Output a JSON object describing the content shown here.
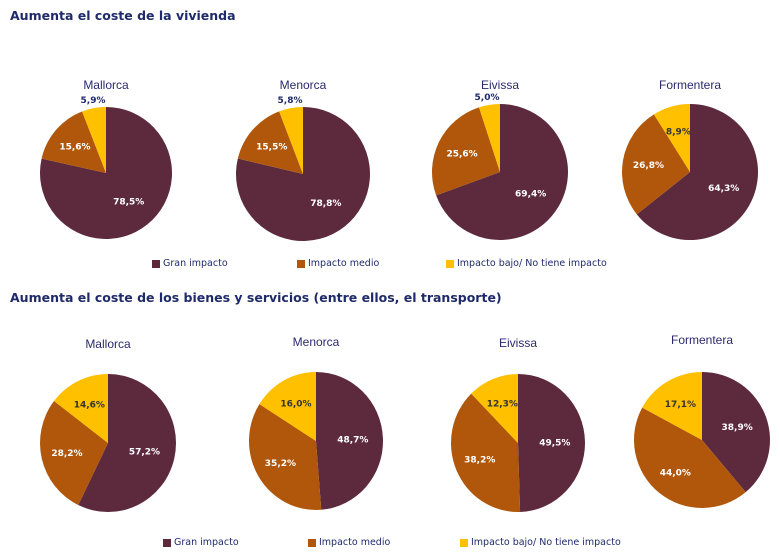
{
  "colors": {
    "gran": "#5c2a3c",
    "medio": "#b0570b",
    "bajo": "#ffc000",
    "title": "#1f2a6b"
  },
  "legend": [
    "Gran impacto",
    "Impacto medio",
    "Impacto bajo/ No tiene impacto"
  ],
  "chart_data": [
    {
      "type": "pie",
      "title": "Aumenta el coste de la vivienda",
      "series_names": [
        "Gran impacto",
        "Impacto medio",
        "Impacto bajo/ No tiene impacto"
      ],
      "legend_position": "bottom",
      "pies": [
        {
          "name": "Mallorca",
          "values": [
            78.5,
            15.6,
            5.9
          ],
          "labels": [
            "78,5%",
            "15,6%",
            "5,9%"
          ]
        },
        {
          "name": "Menorca",
          "values": [
            78.8,
            15.5,
            5.8
          ],
          "labels": [
            "78,8%",
            "15,5%",
            "5,8%"
          ]
        },
        {
          "name": "Eivissa",
          "values": [
            69.4,
            25.6,
            5.0
          ],
          "labels": [
            "69,4%",
            "25,6%",
            "5,0%"
          ]
        },
        {
          "name": "Formentera",
          "values": [
            64.3,
            26.8,
            8.9
          ],
          "labels": [
            "64,3%",
            "26,8%",
            "8,9%"
          ]
        }
      ]
    },
    {
      "type": "pie",
      "title": "Aumenta el coste de los bienes y servicios (entre ellos, el transporte)",
      "series_names": [
        "Gran impacto",
        "Impacto medio",
        "Impacto bajo/ No tiene impacto"
      ],
      "legend_position": "bottom",
      "pies": [
        {
          "name": "Mallorca",
          "values": [
            57.2,
            28.2,
            14.6
          ],
          "labels": [
            "57,2%",
            "28,2%",
            "14,6%"
          ]
        },
        {
          "name": "Menorca",
          "values": [
            48.7,
            35.2,
            16.0
          ],
          "labels": [
            "48,7%",
            "35,2%",
            "16,0%"
          ]
        },
        {
          "name": "Eivissa",
          "values": [
            49.5,
            38.2,
            12.3
          ],
          "labels": [
            "49,5%",
            "38,2%",
            "12,3%"
          ]
        },
        {
          "name": "Formentera",
          "values": [
            38.9,
            44.0,
            17.1
          ],
          "labels": [
            "38,9%",
            "44,0%",
            "17,1%"
          ]
        }
      ]
    }
  ]
}
